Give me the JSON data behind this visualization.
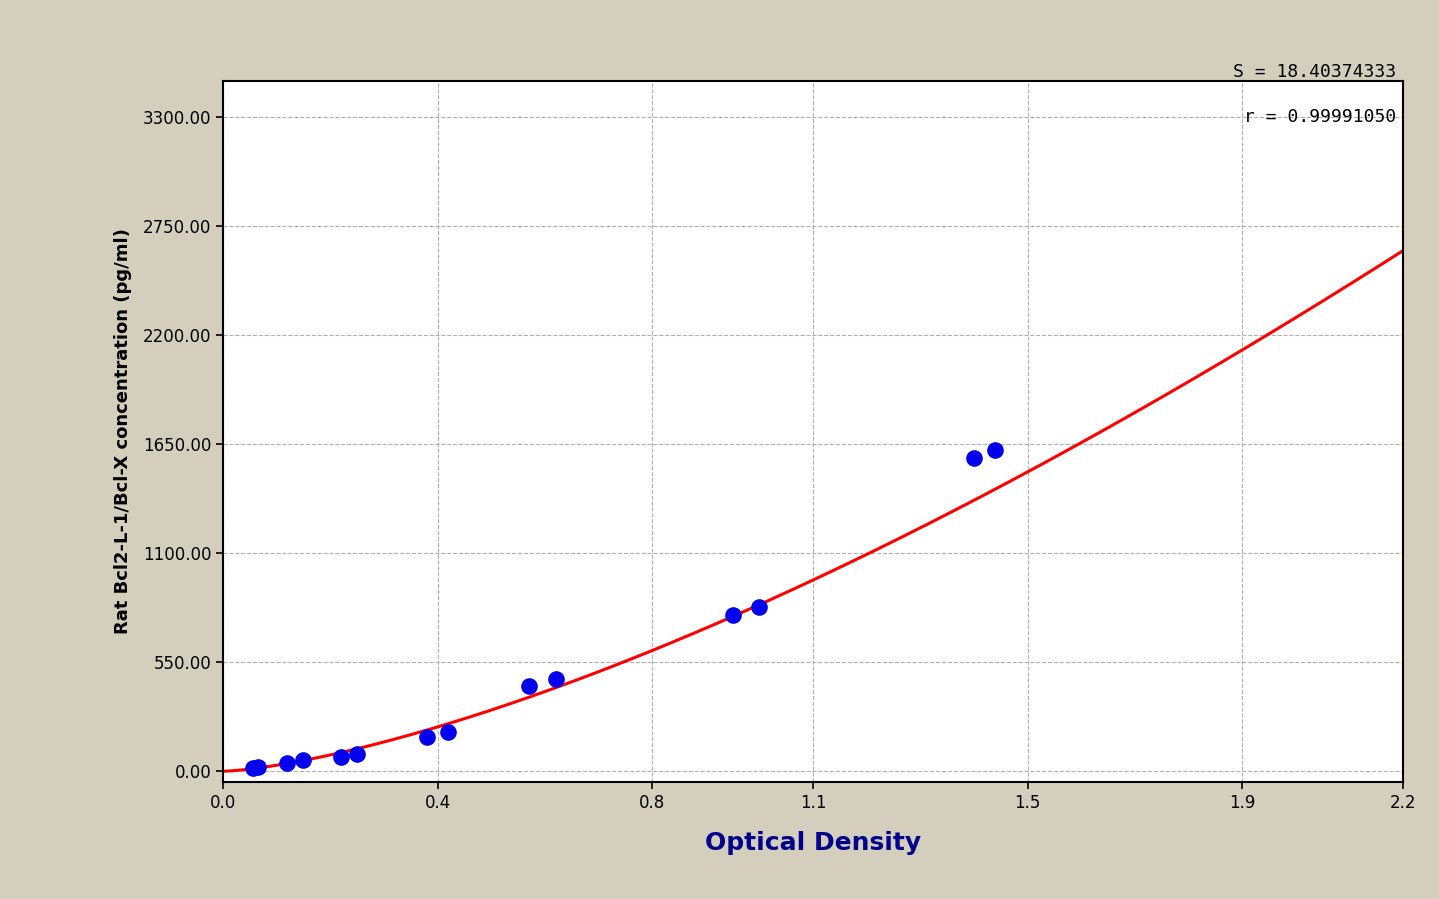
{
  "scatter_x": [
    0.055,
    0.065,
    0.12,
    0.15,
    0.22,
    0.25,
    0.38,
    0.42,
    0.57,
    0.62,
    0.95,
    1.0,
    1.4,
    1.44
  ],
  "scatter_y": [
    15,
    20,
    40,
    55,
    70,
    85,
    175,
    200,
    430,
    465,
    790,
    830,
    1580,
    1620
  ],
  "scatter_color": "#0000EE",
  "scatter_size": 100,
  "curve_color": "#FF0000",
  "curve_linewidth": 2.2,
  "bg_color": "#D4CEBC",
  "plot_bg_color": "#FFFFFF",
  "xlabel": "Optical Density",
  "ylabel": "Rat Bcl2-L-1/Bcl-X concentration (pg/ml)",
  "xlabel_fontsize": 18,
  "ylabel_fontsize": 13,
  "xlabel_fontweight": "bold",
  "ylabel_fontweight": "bold",
  "xlabel_color": "#00008B",
  "ylabel_color": "#000000",
  "annotation_line1": "S = 18.40374333",
  "annotation_line2": "r = 0.99991050",
  "annotation_fontsize": 13,
  "annotation_color": "#000000",
  "xlim": [
    0.0,
    2.2
  ],
  "ylim": [
    -55.0,
    3480.0
  ],
  "xticks": [
    0.0,
    0.4,
    0.8,
    1.1,
    1.5,
    1.9,
    2.2
  ],
  "yticks": [
    0.0,
    550.0,
    1100.0,
    1650.0,
    2200.0,
    2750.0,
    3300.0
  ],
  "ytick_labels": [
    "0.00",
    "550.00",
    "1100.00",
    "1650.00",
    "2200.00",
    "2750.00",
    "3300.00"
  ],
  "xtick_labels": [
    "0.0",
    "0.4",
    "0.8",
    "1.1",
    "1.5",
    "1.9",
    "2.2"
  ],
  "grid_color": "#B0B0B0",
  "grid_linestyle": "--",
  "grid_linewidth": 0.8,
  "tick_fontsize": 12,
  "a_coef": 18.40374333,
  "b_coef": 2.72
}
